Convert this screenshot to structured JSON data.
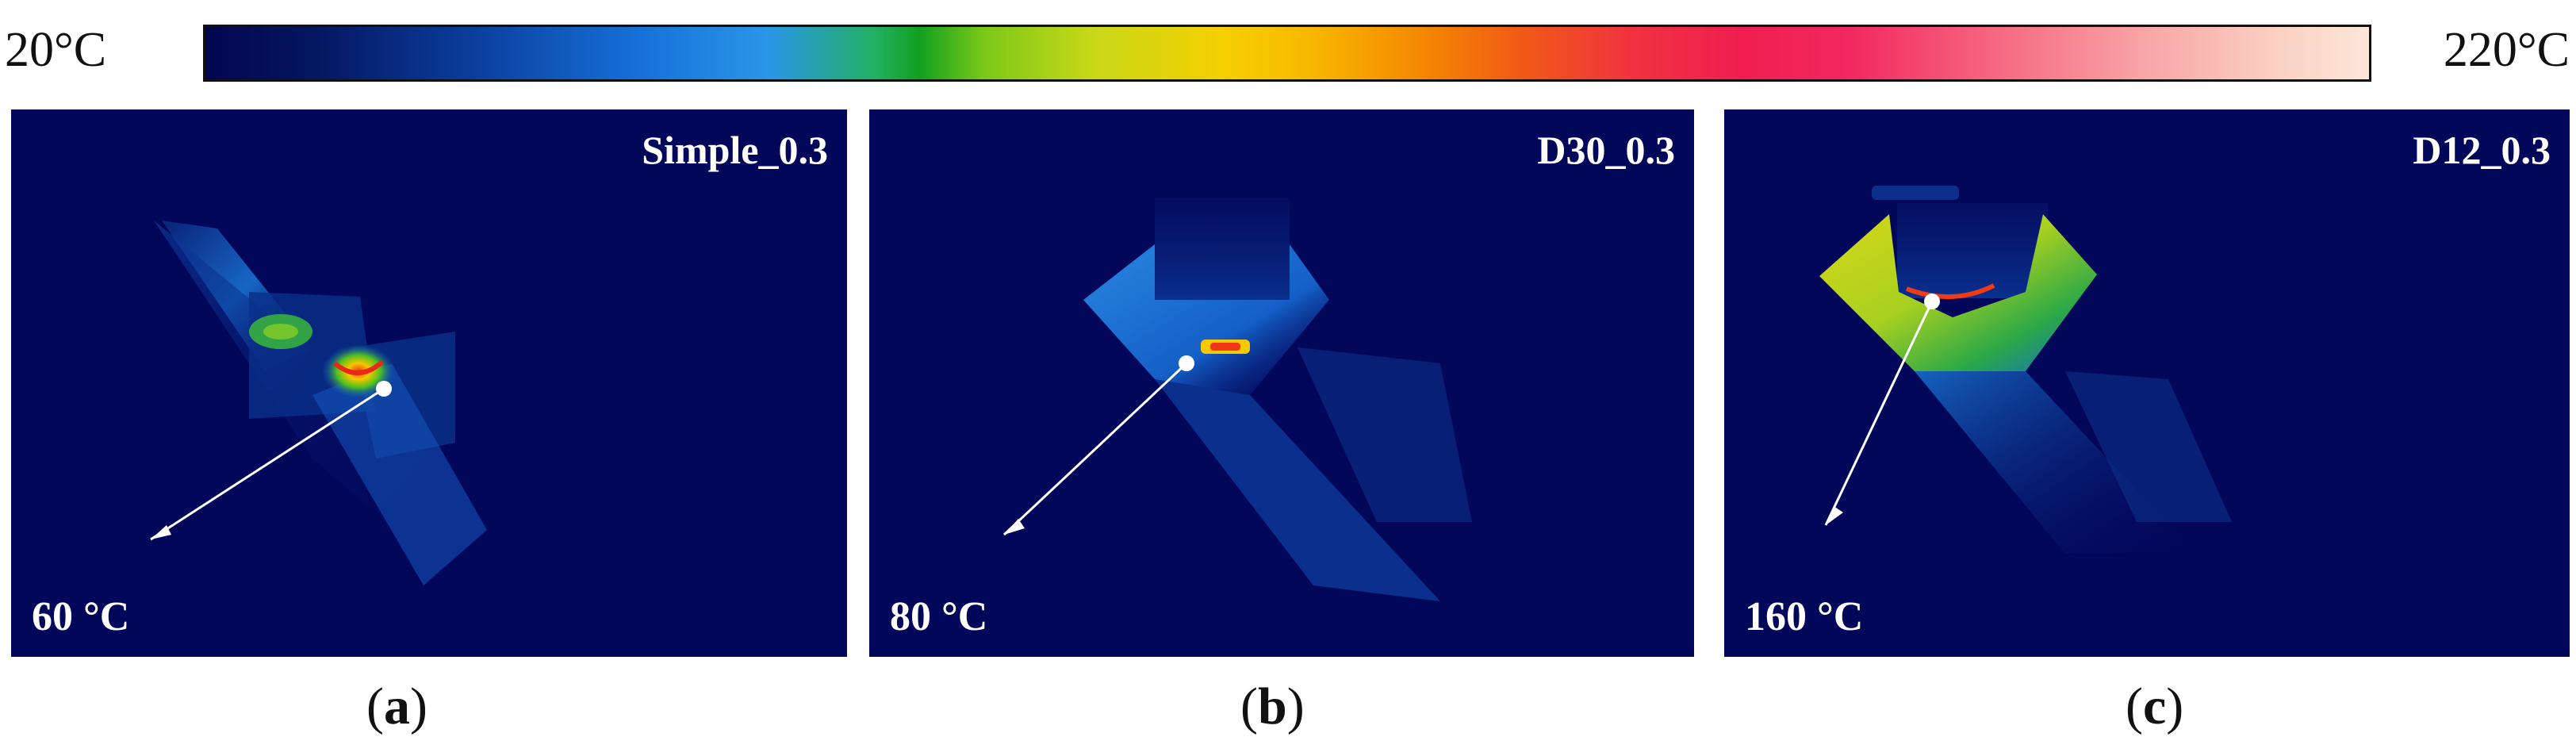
{
  "colorbar": {
    "min_label": "20°C",
    "max_label": "220°C",
    "colors": [
      "#03064f",
      "#1670d8",
      "#12a020",
      "#f4d000",
      "#f48a00",
      "#f01e50",
      "#fce6d8"
    ]
  },
  "panels": [
    {
      "name": "Simple_0.3",
      "temperature": "60 °C",
      "caption_open": "(",
      "caption_letter": "a",
      "caption_close": ")"
    },
    {
      "name": "D30_0.3",
      "temperature": "80 °C",
      "caption_open": "(",
      "caption_letter": "b",
      "caption_close": ")"
    },
    {
      "name": "D12_0.3",
      "temperature": "160 °C",
      "caption_open": "(",
      "caption_letter": "c",
      "caption_close": ")"
    }
  ]
}
